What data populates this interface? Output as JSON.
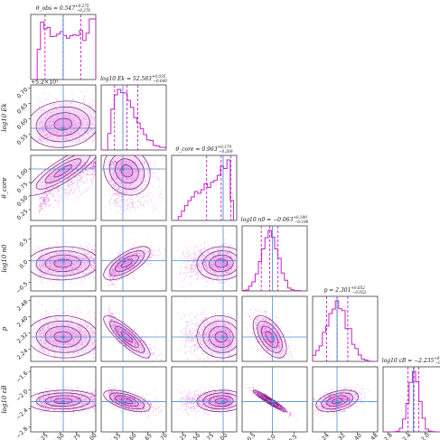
{
  "chart_data": {
    "type": "corner",
    "params": [
      {
        "symbol": "θ_obs",
        "xlabel": "θ_obs",
        "ylabel": "",
        "title": "θ_obs = 0.547",
        "title_sup": "+0.275",
        "title_sub": "−0.276",
        "range": [
          0.05,
          1.05
        ],
        "ticks": [
          0.25,
          0.5,
          0.75,
          1.0
        ],
        "tick_labels": [
          "0.25",
          "0.50",
          "0.75",
          "1.00"
        ],
        "truth": 0.55,
        "q16": 0.27,
        "q50": 0.547,
        "q84": 0.82,
        "hist_shape": "broad"
      },
      {
        "symbol": "log10 Ek",
        "xlabel": "log10 Ek",
        "ylabel": "log10 Ek",
        "title": "log10 Ek = 52.583",
        "title_sup": "+0.035",
        "title_sub": "−0.040",
        "range": [
          52.5,
          52.71
        ],
        "ticks": [
          52.55,
          52.6,
          52.65,
          52.7
        ],
        "tick_labels": [
          "0.55",
          "0.60",
          "0.65",
          "0.70"
        ],
        "offset_label": "+5.2×10¹",
        "y_offset_label": "+5.2×10¹",
        "truth": 52.57,
        "q16": 52.543,
        "q50": 52.583,
        "q84": 52.618,
        "hist_shape": "skew_right"
      },
      {
        "symbol": "θ_core",
        "xlabel": "θ_core",
        "ylabel": "θ_core",
        "title": "θ_core = 0.963",
        "title_sup": "+0.179",
        "title_sub": "−0.269",
        "range": [
          0.05,
          1.25
        ],
        "ticks": [
          0.25,
          0.5,
          0.75,
          1.0
        ],
        "tick_labels": [
          "0.25",
          "0.50",
          "0.75",
          "1.00"
        ],
        "truth": 1.0,
        "q16": 0.694,
        "q50": 0.963,
        "q84": 1.142,
        "hist_shape": "rising"
      },
      {
        "symbol": "log10 n0",
        "xlabel": "log10 n0",
        "ylabel": "log10 n0",
        "title": "log10 n0 = −0.063",
        "title_sup": "+0.189",
        "title_sub": "−0.196",
        "range": [
          -0.7,
          0.8
        ],
        "ticks": [
          -0.5,
          0.0,
          0.5
        ],
        "tick_labels": [
          "−0.5",
          "0.0",
          "0.5"
        ],
        "truth": 0.0,
        "q16": -0.259,
        "q50": -0.063,
        "q84": 0.126,
        "hist_shape": "peaked"
      },
      {
        "symbol": "p",
        "xlabel": "p",
        "ylabel": "p",
        "title": "p = 2.301",
        "title_sup": "+0.052",
        "title_sub": "−0.052",
        "range": [
          2.18,
          2.5
        ],
        "ticks": [
          2.24,
          2.32,
          2.4,
          2.48
        ],
        "tick_labels": [
          "2.24",
          "2.32",
          "2.40",
          "2.48"
        ],
        "truth": 2.3,
        "q16": 2.249,
        "q50": 2.301,
        "q84": 2.353,
        "hist_shape": "normal"
      },
      {
        "symbol": "log10 εB",
        "xlabel": "log10 εB",
        "ylabel": "log10 εB",
        "title": "log10 εB = −2.235",
        "title_sup": "+0.103",
        "title_sub": "−0.129",
        "range": [
          -2.9,
          -1.5
        ],
        "ticks": [
          -2.8,
          -2.4,
          -2.0,
          -1.6
        ],
        "tick_labels": [
          "−2.8",
          "−2.4",
          "−2.0",
          "−1.6"
        ],
        "truth": -2.25,
        "q16": -2.364,
        "q50": -2.235,
        "q84": -2.132,
        "hist_shape": "normal"
      }
    ],
    "correlations": [
      [
        1,
        0.1,
        0.85,
        0.05,
        -0.05,
        0.05
      ],
      [
        0.1,
        1,
        -0.15,
        0.7,
        -0.85,
        -0.6
      ],
      [
        0.85,
        -0.15,
        1,
        0.05,
        -0.05,
        0.05
      ],
      [
        0.05,
        0.7,
        0.05,
        1,
        -0.55,
        -0.95
      ],
      [
        -0.05,
        -0.85,
        -0.05,
        -0.55,
        1,
        0.4
      ],
      [
        0.05,
        -0.6,
        0.05,
        -0.95,
        0.4,
        1
      ]
    ],
    "colors": {
      "posterior": "#c71fc7",
      "fill": "#e58be5",
      "truth": "#4a8fd0",
      "quantile": "#c71fc7"
    }
  }
}
